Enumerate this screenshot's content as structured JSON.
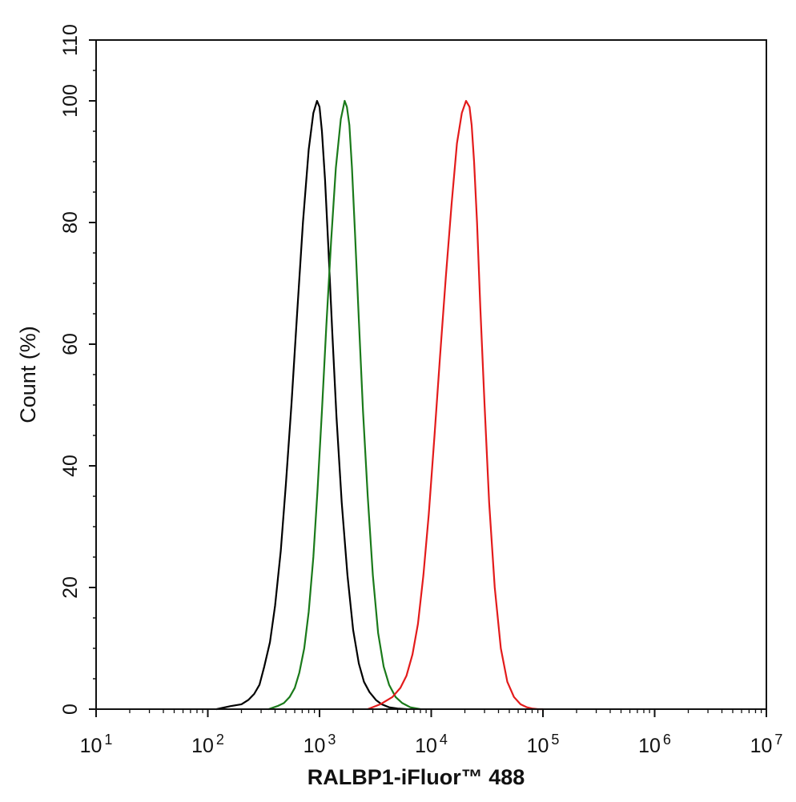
{
  "chart_data": {
    "type": "line",
    "xlabel": "RALBP1-iFluor™ 488",
    "ylabel": "Count  (%)",
    "xscale": "log",
    "xlim": [
      10,
      10000000
    ],
    "ylim": [
      0,
      110
    ],
    "x_ticks": [
      {
        "value": 10,
        "base": "10",
        "exp": "1"
      },
      {
        "value": 100,
        "base": "10",
        "exp": "2"
      },
      {
        "value": 1000,
        "base": "10",
        "exp": "3"
      },
      {
        "value": 10000,
        "base": "10",
        "exp": "4"
      },
      {
        "value": 100000,
        "base": "10",
        "exp": "5"
      },
      {
        "value": 1000000,
        "base": "10",
        "exp": "6"
      },
      {
        "value": 10000000,
        "base": "10",
        "exp": "7"
      }
    ],
    "y_ticks": [
      0,
      20,
      40,
      60,
      80,
      100,
      110
    ],
    "y_ticks_rotated": true,
    "grid": false,
    "legend": "none",
    "series": [
      {
        "color": "#000000",
        "x": [
          120,
          160,
          200,
          230,
          260,
          290,
          320,
          360,
          400,
          450,
          500,
          560,
          630,
          710,
          800,
          880,
          950,
          1000,
          1050,
          1120,
          1200,
          1300,
          1420,
          1580,
          1780,
          2000,
          2250,
          2500,
          2800,
          3200,
          3600,
          4200,
          5000,
          6000
        ],
        "y": [
          0,
          0.5,
          0.8,
          1.5,
          2.5,
          4,
          7,
          11,
          17,
          26,
          37,
          50,
          65,
          80,
          92,
          98,
          100,
          99,
          95,
          87,
          76,
          62,
          48,
          34,
          22,
          13,
          7.5,
          4.5,
          2.8,
          1.5,
          0.8,
          0.3,
          0.1,
          0
        ]
      },
      {
        "color": "#1a7a1a",
        "x": [
          350,
          420,
          480,
          540,
          600,
          660,
          730,
          800,
          880,
          960,
          1050,
          1150,
          1270,
          1400,
          1550,
          1680,
          1760,
          1850,
          1950,
          2080,
          2250,
          2450,
          2700,
          3000,
          3350,
          3750,
          4200,
          4800,
          5500,
          6500,
          8000
        ],
        "y": [
          0,
          0.5,
          1,
          2,
          3.5,
          6,
          10,
          16,
          25,
          36,
          49,
          63,
          77,
          89,
          97,
          100,
          99,
          96,
          89,
          78,
          64,
          49,
          35,
          22,
          12.5,
          7,
          4,
          2,
          1,
          0.3,
          0
        ]
      },
      {
        "color": "#e31b1b",
        "x": [
          2700,
          3500,
          4500,
          5300,
          6000,
          6800,
          7600,
          8500,
          9500,
          10700,
          12000,
          13500,
          15200,
          17000,
          18800,
          20500,
          22000,
          23000,
          24200,
          25700,
          27500,
          30000,
          33000,
          37000,
          42000,
          48000,
          55000,
          63000,
          72000,
          80000,
          90000,
          100000
        ],
        "y": [
          0,
          0.8,
          2,
          3.5,
          5.5,
          9,
          14,
          22,
          32,
          45,
          58,
          71,
          83,
          93,
          98,
          100,
          99,
          96,
          90,
          80,
          66,
          50,
          34,
          20,
          10,
          4.5,
          2,
          0.8,
          0.3,
          0.1,
          0,
          0
        ]
      }
    ]
  }
}
